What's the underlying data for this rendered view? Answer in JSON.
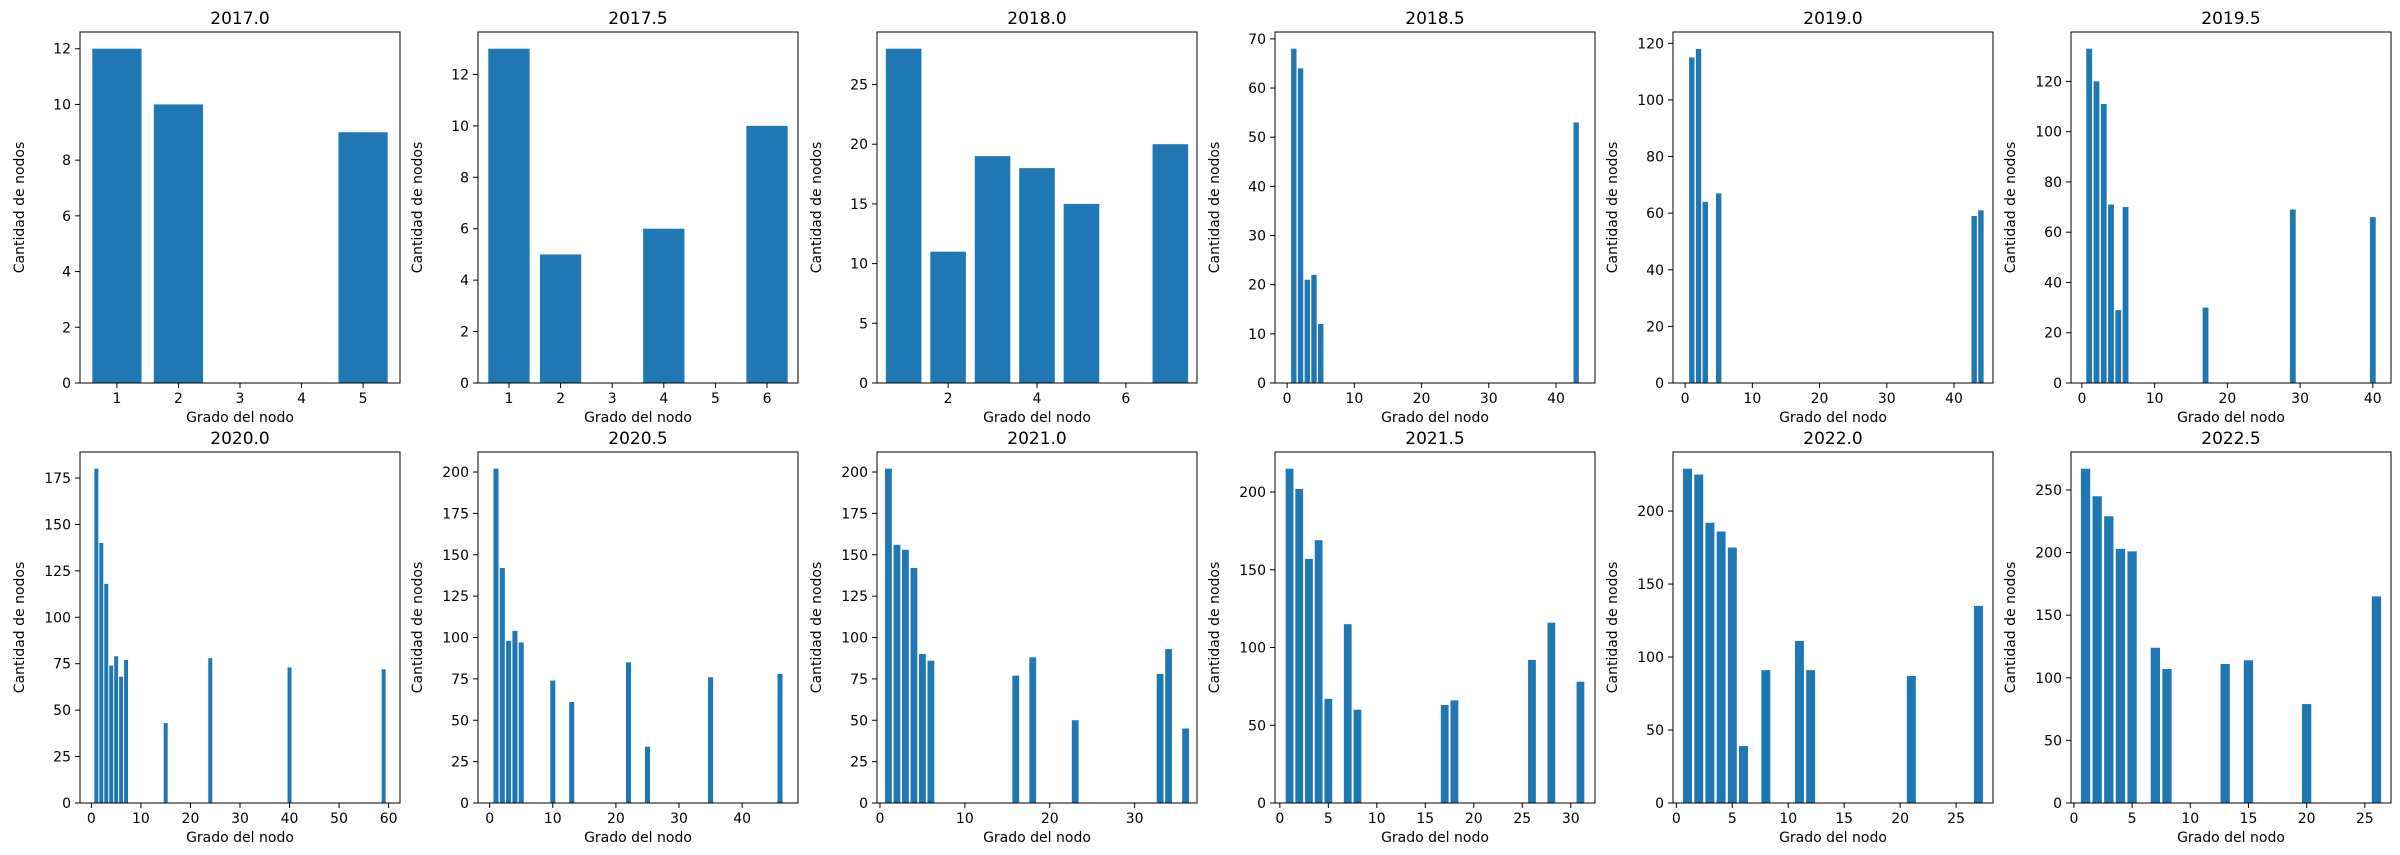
{
  "figure": {
    "xlabel": "Grado del nodo",
    "ylabel": "Cantidad de nodos",
    "bar_color": "#1f77b4"
  },
  "chart_data": [
    {
      "type": "bar",
      "title": "2017.0",
      "xlabel": "Grado del nodo",
      "ylabel": "Cantidad de nodos",
      "x": [
        1,
        2,
        5
      ],
      "values": [
        12,
        10,
        9
      ],
      "bar_width": 0.8,
      "xlim": [
        0.4,
        5.6
      ],
      "ylim": [
        0,
        12.6
      ],
      "xticks": [
        1,
        2,
        3,
        4,
        5
      ],
      "yticks": [
        0,
        2,
        4,
        6,
        8,
        10,
        12
      ]
    },
    {
      "type": "bar",
      "title": "2017.5",
      "xlabel": "Grado del nodo",
      "ylabel": "Cantidad de nodos",
      "x": [
        1,
        2,
        4,
        6
      ],
      "values": [
        13,
        5,
        6,
        10
      ],
      "bar_width": 0.8,
      "xlim": [
        0.4,
        6.6
      ],
      "ylim": [
        0,
        13.65
      ],
      "xticks": [
        1,
        2,
        3,
        4,
        5,
        6
      ],
      "yticks": [
        0,
        2,
        4,
        6,
        8,
        10,
        12
      ]
    },
    {
      "type": "bar",
      "title": "2018.0",
      "xlabel": "Grado del nodo",
      "ylabel": "Cantidad de nodos",
      "x": [
        1,
        2,
        3,
        4,
        5,
        7
      ],
      "values": [
        28,
        11,
        19,
        18,
        15,
        20
      ],
      "bar_width": 0.8,
      "xlim": [
        0.4,
        7.6
      ],
      "ylim": [
        0,
        29.4
      ],
      "xticks": [
        2,
        4,
        6
      ],
      "yticks": [
        0,
        5,
        10,
        15,
        20,
        25
      ]
    },
    {
      "type": "bar",
      "title": "2018.5",
      "xlabel": "Grado del nodo",
      "ylabel": "Cantidad de nodos",
      "x": [
        1,
        2,
        3,
        4,
        5,
        43
      ],
      "values": [
        68,
        64,
        21,
        22,
        12,
        53
      ],
      "bar_width": 0.8,
      "xlim": [
        -1.8,
        45.8
      ],
      "ylim": [
        0,
        71.4
      ],
      "xticks": [
        0,
        10,
        20,
        30,
        40
      ],
      "yticks": [
        0,
        10,
        20,
        30,
        40,
        50,
        60,
        70
      ]
    },
    {
      "type": "bar",
      "title": "2019.0",
      "xlabel": "Grado del nodo",
      "ylabel": "Cantidad de nodos",
      "x": [
        1,
        2,
        3,
        5,
        43,
        44
      ],
      "values": [
        115,
        118,
        64,
        67,
        59,
        61
      ],
      "bar_width": 0.8,
      "xlim": [
        -1.8,
        45.8
      ],
      "ylim": [
        0,
        124
      ],
      "xticks": [
        0,
        10,
        20,
        30,
        40
      ],
      "yticks": [
        0,
        20,
        40,
        60,
        80,
        100,
        120
      ]
    },
    {
      "type": "bar",
      "title": "2019.5",
      "xlabel": "Grado del nodo",
      "ylabel": "Cantidad de nodos",
      "x": [
        1,
        2,
        3,
        4,
        5,
        6,
        17,
        29,
        40
      ],
      "values": [
        133,
        120,
        111,
        71,
        29,
        70,
        30,
        69,
        66
      ],
      "bar_width": 0.8,
      "xlim": [
        -1.5,
        42.5
      ],
      "ylim": [
        0,
        139.65
      ],
      "xticks": [
        0,
        10,
        20,
        30,
        40
      ],
      "yticks": [
        0,
        20,
        40,
        60,
        80,
        100,
        120
      ]
    },
    {
      "type": "bar",
      "title": "2020.0",
      "xlabel": "Grado del nodo",
      "ylabel": "Cantidad de nodos",
      "x": [
        1,
        2,
        3,
        4,
        5,
        6,
        7,
        15,
        24,
        40,
        59
      ],
      "values": [
        180,
        140,
        118,
        74,
        79,
        68,
        77,
        43,
        78,
        73,
        72
      ],
      "bar_width": 0.8,
      "xlim": [
        -2.3,
        62.3
      ],
      "ylim": [
        0,
        189
      ],
      "xticks": [
        0,
        10,
        20,
        30,
        40,
        50,
        60
      ],
      "yticks": [
        0,
        25,
        50,
        75,
        100,
        125,
        150,
        175
      ]
    },
    {
      "type": "bar",
      "title": "2020.5",
      "xlabel": "Grado del nodo",
      "ylabel": "Cantidad de nodos",
      "x": [
        1,
        2,
        3,
        4,
        5,
        10,
        13,
        22,
        25,
        35,
        46
      ],
      "values": [
        202,
        142,
        98,
        104,
        97,
        74,
        61,
        85,
        34,
        76,
        78
      ],
      "bar_width": 0.8,
      "xlim": [
        -1.85,
        48.85
      ],
      "ylim": [
        0,
        212.1
      ],
      "xticks": [
        0,
        10,
        20,
        30,
        40
      ],
      "yticks": [
        0,
        25,
        50,
        75,
        100,
        125,
        150,
        175,
        200
      ]
    },
    {
      "type": "bar",
      "title": "2021.0",
      "xlabel": "Grado del nodo",
      "ylabel": "Cantidad de nodos",
      "x": [
        1,
        2,
        3,
        4,
        5,
        6,
        16,
        18,
        23,
        33,
        34,
        36
      ],
      "values": [
        202,
        156,
        153,
        142,
        90,
        86,
        77,
        88,
        50,
        78,
        93,
        45
      ],
      "bar_width": 0.8,
      "xlim": [
        -0.35,
        37.35
      ],
      "ylim": [
        0,
        212.1
      ],
      "xticks": [
        0,
        10,
        20,
        30
      ],
      "yticks": [
        0,
        25,
        50,
        75,
        100,
        125,
        150,
        175,
        200
      ]
    },
    {
      "type": "bar",
      "title": "2021.5",
      "xlabel": "Grado del nodo",
      "ylabel": "Cantidad de nodos",
      "x": [
        1,
        2,
        3,
        4,
        5,
        7,
        8,
        17,
        18,
        26,
        28,
        31
      ],
      "values": [
        215,
        202,
        157,
        169,
        67,
        115,
        60,
        63,
        66,
        92,
        116,
        78
      ],
      "bar_width": 0.8,
      "xlim": [
        -0.5,
        32.5
      ],
      "ylim": [
        0,
        225.75
      ],
      "xticks": [
        0,
        5,
        10,
        15,
        20,
        25,
        30
      ],
      "yticks": [
        0,
        50,
        100,
        150,
        200
      ]
    },
    {
      "type": "bar",
      "title": "2022.0",
      "xlabel": "Grado del nodo",
      "ylabel": "Cantidad de nodos",
      "x": [
        1,
        2,
        3,
        4,
        5,
        6,
        8,
        11,
        12,
        21,
        27
      ],
      "values": [
        229,
        225,
        192,
        186,
        175,
        39,
        91,
        111,
        91,
        87,
        135
      ],
      "bar_width": 0.8,
      "xlim": [
        -0.3,
        28.3
      ],
      "ylim": [
        0,
        240.45
      ],
      "xticks": [
        0,
        5,
        10,
        15,
        20,
        25
      ],
      "yticks": [
        0,
        50,
        100,
        150,
        200
      ]
    },
    {
      "type": "bar",
      "title": "2022.5",
      "xlabel": "Grado del nodo",
      "ylabel": "Cantidad de nodos",
      "x": [
        1,
        2,
        3,
        4,
        5,
        7,
        8,
        13,
        15,
        20,
        26
      ],
      "values": [
        267,
        245,
        229,
        203,
        201,
        124,
        107,
        111,
        114,
        79,
        165
      ],
      "bar_width": 0.8,
      "xlim": [
        -0.25,
        27.25
      ],
      "ylim": [
        0,
        280.35
      ],
      "xticks": [
        0,
        5,
        10,
        15,
        20,
        25
      ],
      "yticks": [
        0,
        50,
        100,
        150,
        200,
        250
      ]
    }
  ]
}
